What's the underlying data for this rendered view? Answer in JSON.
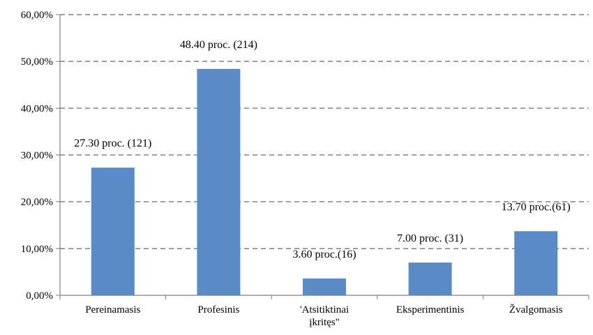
{
  "chart_data": {
    "type": "bar",
    "categories": [
      [
        "Pereinamasis"
      ],
      [
        "Profesinis"
      ],
      [
        "'Atsitiktinai",
        "įkritęs\""
      ],
      [
        "Eksperimentinis"
      ],
      [
        "Žvalgomasis"
      ]
    ],
    "values": [
      27.3,
      48.4,
      3.6,
      7.0,
      13.7
    ],
    "data_labels": [
      "27.30 proc. (121)",
      "48.40 proc. (214)",
      "3.60 proc.(16)",
      "7.00 proc. (31)",
      "13.70 proc.(61)"
    ],
    "ylim": [
      0,
      60
    ],
    "yticks": [
      0,
      10,
      20,
      30,
      40,
      50,
      60
    ],
    "ytick_labels": [
      "0,00%",
      "10,00%",
      "20,00%",
      "30,00%",
      "40,00%",
      "50,00%",
      "60,00%"
    ],
    "bar_color": "#5b8bc6",
    "grid": true,
    "grid_style": "dashed",
    "legend": "none",
    "title": "",
    "xlabel": "",
    "ylabel": ""
  }
}
